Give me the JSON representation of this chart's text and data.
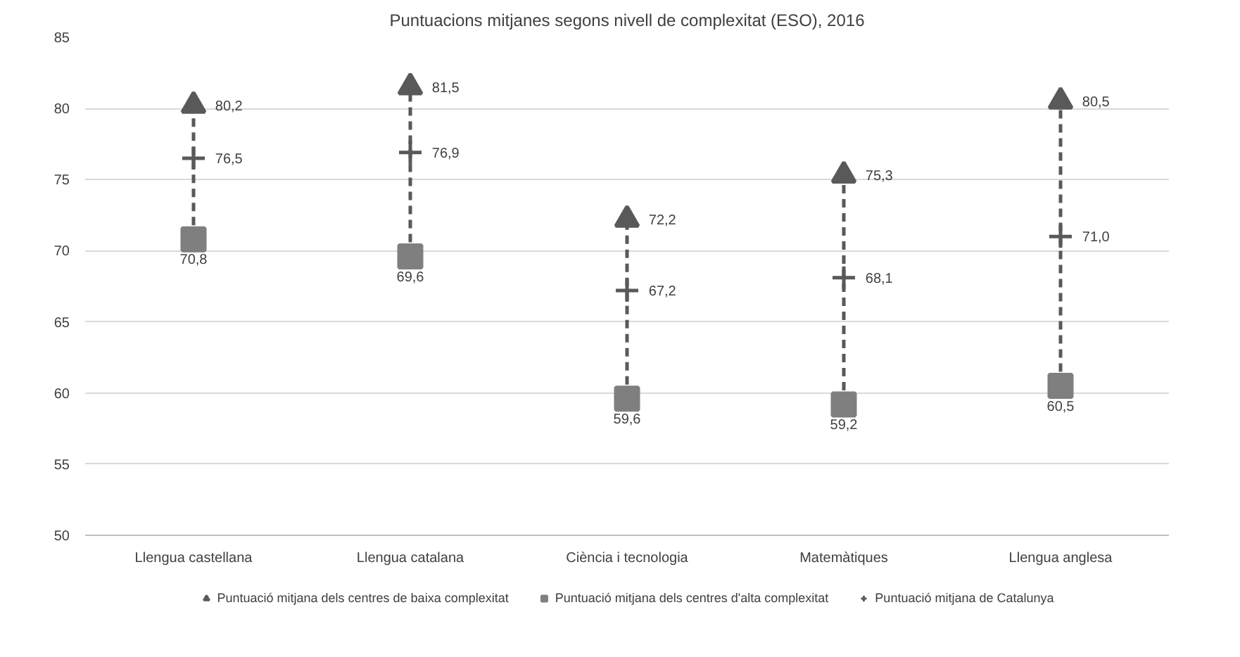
{
  "chart_data": {
    "type": "scatter",
    "title": "Puntuacions mitjanes segons nivell de complexitat (ESO), 2016",
    "categories": [
      "Llengua castellana",
      "Llengua catalana",
      "Ciència i tecnologia",
      "Matemàtiques",
      "Llengua anglesa"
    ],
    "series": [
      {
        "name": "Puntuació mitjana dels centres de baixa complexitat",
        "color": "#595959",
        "marker": "triangle",
        "values": [
          80.2,
          81.5,
          72.2,
          75.3,
          80.5
        ],
        "value_labels": [
          "80,2",
          "81,5",
          "72,2",
          "75,3",
          "80,5"
        ]
      },
      {
        "name": "Puntuació mitjana dels centres d'alta complexitat",
        "color": "#7f7f7f",
        "marker": "square",
        "values": [
          70.8,
          69.6,
          59.6,
          59.2,
          60.5
        ],
        "value_labels": [
          "70,8",
          "69,6",
          "59,6",
          "59,2",
          "60,5"
        ]
      },
      {
        "name": "Puntuació mitjana de Catalunya",
        "color": "#595959",
        "marker": "cross",
        "values": [
          76.5,
          76.9,
          67.2,
          68.1,
          71.0
        ],
        "value_labels": [
          "76,5",
          "76,9",
          "67,2",
          "68,1",
          "71,0"
        ]
      }
    ],
    "line_style": "dashed",
    "ylim": [
      50,
      85
    ],
    "yticks": [
      50,
      55,
      60,
      65,
      70,
      75,
      80,
      85
    ],
    "grid": "y",
    "legend": "bottom"
  }
}
